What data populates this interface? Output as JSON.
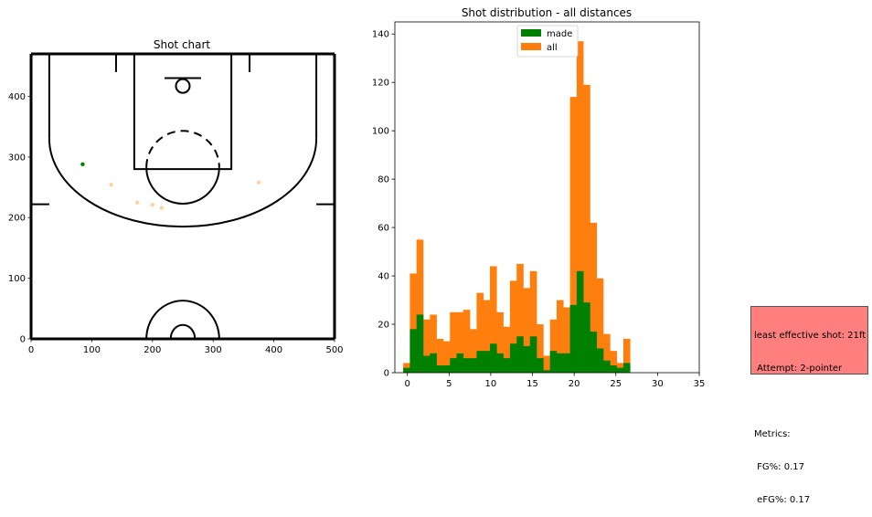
{
  "chart_data": [
    {
      "type": "scatter",
      "title": "Shot chart",
      "xlim": [
        0,
        500
      ],
      "ylim": [
        0,
        470
      ],
      "xticks": [
        "0",
        "100",
        "200",
        "300",
        "400",
        "500"
      ],
      "yticks": [
        "0",
        "100",
        "200",
        "300",
        "400"
      ],
      "series": [
        {
          "color": "#008000",
          "opacity": 1.0,
          "points": [
            [
              85,
              288
            ]
          ]
        },
        {
          "color": "#ffbe7a",
          "opacity": 0.7,
          "points": [
            [
              132,
              254
            ],
            [
              175,
              225
            ],
            [
              200,
              221
            ],
            [
              215,
              216
            ],
            [
              375,
              258
            ]
          ]
        }
      ]
    },
    {
      "type": "histogram",
      "title": "Shot distribution - all distances",
      "xlim": [
        -1.5,
        35
      ],
      "ylim": [
        0,
        145
      ],
      "bin_start": -0.5,
      "bin_width": 0.8,
      "xticks": [
        "0",
        "5",
        "10",
        "15",
        "20",
        "25",
        "30",
        "35"
      ],
      "yticks": [
        "0",
        "20",
        "40",
        "60",
        "80",
        "100",
        "120",
        "140"
      ],
      "legend": {
        "position": "upper center",
        "entries": [
          {
            "label": "made",
            "color": "#008000"
          },
          {
            "label": "all",
            "color": "#ff7f0e"
          }
        ]
      },
      "series": [
        {
          "name": "all",
          "color": "#ff7f0e",
          "values": [
            4,
            41,
            55,
            22,
            24,
            14,
            13,
            25,
            25,
            26,
            18,
            33,
            30,
            44,
            25,
            19,
            38,
            45,
            35,
            42,
            20,
            7,
            22,
            30,
            27,
            114,
            137,
            119,
            62,
            39,
            16,
            9,
            4,
            14
          ]
        },
        {
          "name": "made",
          "color": "#008000",
          "values": [
            2,
            18,
            24,
            7,
            8,
            3,
            3,
            6,
            8,
            6,
            6,
            9,
            9,
            12,
            8,
            6,
            12,
            15,
            11,
            15,
            6,
            1,
            9,
            8,
            8,
            28,
            42,
            29,
            17,
            10,
            5,
            3,
            2,
            4
          ]
        }
      ]
    }
  ],
  "metrics_box": {
    "line1": "least effective shot: 21ft",
    "line2": " Attempt: 2-pointer",
    "line3": "",
    "line4": "Metrics:",
    "line5": " FG%: 0.17",
    "line6": " eFG%: 0.17",
    "background": "#ff7f7f"
  }
}
